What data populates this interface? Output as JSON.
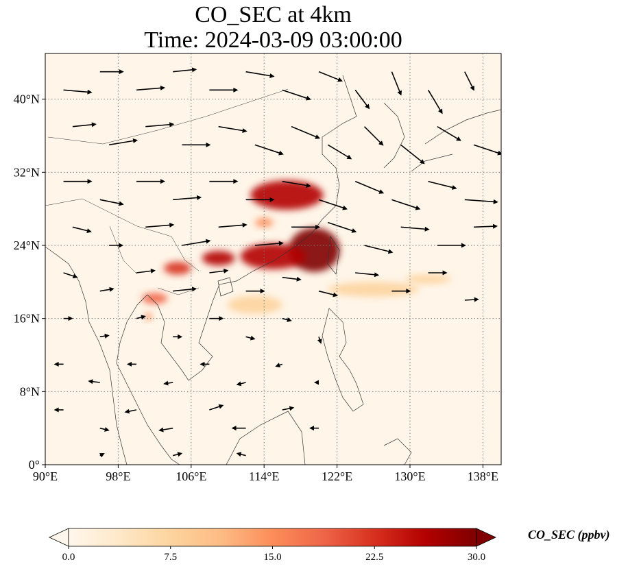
{
  "title": {
    "line1": "CO_SEC at 4km",
    "line2": "Time: 2024-03-09 03:00:00"
  },
  "map": {
    "projection": "PlateCarree",
    "lon_range": [
      90,
      140
    ],
    "lat_range": [
      0,
      45
    ],
    "lon_ticks": [
      {
        "value": 90,
        "label": "90°E"
      },
      {
        "value": 98,
        "label": "98°E"
      },
      {
        "value": 106,
        "label": "106°E"
      },
      {
        "value": 114,
        "label": "114°E"
      },
      {
        "value": 122,
        "label": "122°E"
      },
      {
        "value": 130,
        "label": "130°E"
      },
      {
        "value": 138,
        "label": "138°E"
      }
    ],
    "lat_ticks": [
      {
        "value": 0,
        "label": "0°"
      },
      {
        "value": 8,
        "label": "8°N"
      },
      {
        "value": 16,
        "label": "16°N"
      },
      {
        "value": 24,
        "label": "24°N"
      },
      {
        "value": 32,
        "label": "32°N"
      },
      {
        "value": 40,
        "label": "40°N"
      }
    ],
    "gridlines": "dotted gray",
    "plumes": [
      {
        "lon": 116.5,
        "lat": 29.5,
        "rx": 4.0,
        "ry": 1.6,
        "level": 27
      },
      {
        "lon": 119.5,
        "lat": 23.5,
        "rx": 2.8,
        "ry": 2.4,
        "level": 30
      },
      {
        "lon": 115.0,
        "lat": 22.8,
        "rx": 3.6,
        "ry": 1.4,
        "level": 26
      },
      {
        "lon": 109.0,
        "lat": 22.6,
        "rx": 1.8,
        "ry": 0.8,
        "level": 25
      },
      {
        "lon": 104.5,
        "lat": 21.5,
        "rx": 1.5,
        "ry": 0.7,
        "level": 22
      },
      {
        "lon": 102.0,
        "lat": 18.2,
        "rx": 1.4,
        "ry": 0.6,
        "level": 20
      },
      {
        "lon": 101.3,
        "lat": 16.2,
        "rx": 0.4,
        "ry": 0.4,
        "level": 16
      },
      {
        "lon": 114.0,
        "lat": 26.5,
        "rx": 1.0,
        "ry": 0.5,
        "level": 14
      },
      {
        "lon": 132.0,
        "lat": 20.3,
        "rx": 2.5,
        "ry": 0.5,
        "level": 9
      },
      {
        "lon": 126.0,
        "lat": 19.2,
        "rx": 5.0,
        "ry": 0.8,
        "level": 6
      },
      {
        "lon": 113.0,
        "lat": 17.5,
        "rx": 3.0,
        "ry": 1.0,
        "level": 8
      }
    ],
    "wind_vectors": [
      {
        "lon": 92,
        "lat": 41,
        "u": 6,
        "v": -0.5
      },
      {
        "lon": 96,
        "lat": 43,
        "u": 5,
        "v": 0
      },
      {
        "lon": 100,
        "lat": 41,
        "u": 6,
        "v": 0.5
      },
      {
        "lon": 104,
        "lat": 43,
        "u": 5,
        "v": 0.5
      },
      {
        "lon": 108,
        "lat": 41,
        "u": 6,
        "v": 0
      },
      {
        "lon": 112,
        "lat": 43,
        "u": 6,
        "v": -1
      },
      {
        "lon": 116,
        "lat": 41,
        "u": 6,
        "v": -2
      },
      {
        "lon": 120,
        "lat": 43,
        "u": 5,
        "v": -2
      },
      {
        "lon": 124,
        "lat": 41,
        "u": 3,
        "v": -4
      },
      {
        "lon": 128,
        "lat": 43,
        "u": 2,
        "v": -5
      },
      {
        "lon": 132,
        "lat": 41,
        "u": 3,
        "v": -5
      },
      {
        "lon": 136,
        "lat": 43,
        "u": 2,
        "v": -4
      },
      {
        "lon": 93,
        "lat": 37,
        "u": 5,
        "v": 0.5
      },
      {
        "lon": 97,
        "lat": 35,
        "u": 6,
        "v": 1
      },
      {
        "lon": 101,
        "lat": 37,
        "u": 6,
        "v": 0.5
      },
      {
        "lon": 105,
        "lat": 35,
        "u": 6,
        "v": 0
      },
      {
        "lon": 109,
        "lat": 37,
        "u": 6,
        "v": -1
      },
      {
        "lon": 113,
        "lat": 35,
        "u": 6,
        "v": -2
      },
      {
        "lon": 117,
        "lat": 37,
        "u": 6,
        "v": -2.5
      },
      {
        "lon": 121,
        "lat": 35,
        "u": 5,
        "v": -3
      },
      {
        "lon": 125,
        "lat": 37,
        "u": 4,
        "v": -4
      },
      {
        "lon": 129,
        "lat": 35,
        "u": 5,
        "v": -4
      },
      {
        "lon": 133,
        "lat": 37,
        "u": 5,
        "v": -3
      },
      {
        "lon": 137,
        "lat": 35,
        "u": 6,
        "v": -2
      },
      {
        "lon": 92,
        "lat": 31,
        "u": 6,
        "v": 0
      },
      {
        "lon": 96,
        "lat": 29,
        "u": 5,
        "v": -1
      },
      {
        "lon": 100,
        "lat": 31,
        "u": 6,
        "v": 0
      },
      {
        "lon": 104,
        "lat": 29,
        "u": 6,
        "v": 0.5
      },
      {
        "lon": 108,
        "lat": 31,
        "u": 6,
        "v": 0
      },
      {
        "lon": 112,
        "lat": 29,
        "u": 6,
        "v": 0
      },
      {
        "lon": 116,
        "lat": 31,
        "u": 6,
        "v": -1
      },
      {
        "lon": 120,
        "lat": 29,
        "u": 6,
        "v": -2
      },
      {
        "lon": 124,
        "lat": 31,
        "u": 6,
        "v": -2.5
      },
      {
        "lon": 128,
        "lat": 29,
        "u": 6,
        "v": -2
      },
      {
        "lon": 132,
        "lat": 31,
        "u": 6,
        "v": -1.5
      },
      {
        "lon": 136,
        "lat": 29,
        "u": 7,
        "v": -0.5
      },
      {
        "lon": 93,
        "lat": 26,
        "u": 4,
        "v": -1
      },
      {
        "lon": 97,
        "lat": 24,
        "u": 3,
        "v": 0
      },
      {
        "lon": 101,
        "lat": 26,
        "u": 6,
        "v": 0.5
      },
      {
        "lon": 105,
        "lat": 24,
        "u": 6,
        "v": 1
      },
      {
        "lon": 109,
        "lat": 26,
        "u": 6,
        "v": 0.5
      },
      {
        "lon": 113,
        "lat": 24,
        "u": 6,
        "v": 0.5
      },
      {
        "lon": 117,
        "lat": 26,
        "u": 6,
        "v": 0
      },
      {
        "lon": 121,
        "lat": 26.5,
        "u": 6,
        "v": -2
      },
      {
        "lon": 125,
        "lat": 24,
        "u": 6,
        "v": -1.5
      },
      {
        "lon": 129,
        "lat": 26,
        "u": 6,
        "v": -0.5
      },
      {
        "lon": 133,
        "lat": 24,
        "u": 6,
        "v": 0
      },
      {
        "lon": 137,
        "lat": 26,
        "u": 5,
        "v": 0.2
      },
      {
        "lon": 92,
        "lat": 21,
        "u": 3,
        "v": -1
      },
      {
        "lon": 96,
        "lat": 19,
        "u": 3,
        "v": 0.5
      },
      {
        "lon": 100,
        "lat": 21,
        "u": 4,
        "v": 0.5
      },
      {
        "lon": 104,
        "lat": 19,
        "u": 5,
        "v": 0.5
      },
      {
        "lon": 108,
        "lat": 21,
        "u": 4,
        "v": 0.5
      },
      {
        "lon": 112,
        "lat": 19,
        "u": 4,
        "v": 0
      },
      {
        "lon": 116,
        "lat": 20.5,
        "u": 4,
        "v": -0.5
      },
      {
        "lon": 120,
        "lat": 19,
        "u": 4,
        "v": -1
      },
      {
        "lon": 124,
        "lat": 21,
        "u": 5,
        "v": -0.5
      },
      {
        "lon": 128,
        "lat": 19,
        "u": 4,
        "v": 0
      },
      {
        "lon": 132,
        "lat": 21,
        "u": 4,
        "v": 0
      },
      {
        "lon": 136,
        "lat": 18,
        "u": 3,
        "v": 0.2
      },
      {
        "lon": 92,
        "lat": 16,
        "u": 2,
        "v": 0
      },
      {
        "lon": 96,
        "lat": 14,
        "u": 2,
        "v": 0.3
      },
      {
        "lon": 100,
        "lat": 16,
        "u": 2,
        "v": 0.5
      },
      {
        "lon": 104,
        "lat": 14,
        "u": 2,
        "v": 0
      },
      {
        "lon": 108,
        "lat": 16,
        "u": 3,
        "v": 0
      },
      {
        "lon": 112,
        "lat": 14,
        "u": 2,
        "v": -0.5
      },
      {
        "lon": 116,
        "lat": 16,
        "u": 2,
        "v": -0.5
      },
      {
        "lon": 120,
        "lat": 14,
        "u": 0.5,
        "v": -1.5
      },
      {
        "lon": 92,
        "lat": 11,
        "u": -2,
        "v": 0
      },
      {
        "lon": 96,
        "lat": 9,
        "u": -2.5,
        "v": 0.3
      },
      {
        "lon": 100,
        "lat": 11,
        "u": -2,
        "v": 0
      },
      {
        "lon": 104,
        "lat": 9,
        "u": -2,
        "v": -0.3
      },
      {
        "lon": 108,
        "lat": 11,
        "u": -2,
        "v": 0
      },
      {
        "lon": 112,
        "lat": 9,
        "u": -2,
        "v": -0.5
      },
      {
        "lon": 116,
        "lat": 11,
        "u": -1.5,
        "v": -0.5
      },
      {
        "lon": 120,
        "lat": 9,
        "u": -1,
        "v": 0
      },
      {
        "lon": 92,
        "lat": 6,
        "u": -2,
        "v": 0
      },
      {
        "lon": 96,
        "lat": 4,
        "u": 2,
        "v": -0.5
      },
      {
        "lon": 100,
        "lat": 6,
        "u": -2.5,
        "v": -0.5
      },
      {
        "lon": 104,
        "lat": 4,
        "u": -3,
        "v": -0.5
      },
      {
        "lon": 108,
        "lat": 6,
        "u": 3,
        "v": 1
      },
      {
        "lon": 112,
        "lat": 4,
        "u": -3,
        "v": 0
      },
      {
        "lon": 116,
        "lat": 6,
        "u": 2.5,
        "v": 0.5
      },
      {
        "lon": 120,
        "lat": 4,
        "u": -2,
        "v": 0
      },
      {
        "lon": 96,
        "lat": 1,
        "u": 1,
        "v": 0.5
      },
      {
        "lon": 104,
        "lat": 1,
        "u": 2,
        "v": 0.5
      },
      {
        "lon": 112,
        "lat": 1,
        "u": -2,
        "v": 0.5
      }
    ]
  },
  "colorbar": {
    "label": "CO_SEC (ppbv)",
    "vmin": 0,
    "vmax": 30,
    "extend": "both",
    "colormap": "OrRd",
    "colors": [
      "#fff7ec",
      "#fee8c8",
      "#fdd49e",
      "#fdbb84",
      "#fc8d59",
      "#ef6548",
      "#d7301f",
      "#b30000",
      "#7f0000"
    ],
    "ticks": [
      {
        "value": 0,
        "label": "0.0"
      },
      {
        "value": 7.5,
        "label": "7.5"
      },
      {
        "value": 15,
        "label": "15.0"
      },
      {
        "value": 22.5,
        "label": "22.5"
      },
      {
        "value": 30,
        "label": "30.0"
      }
    ]
  }
}
